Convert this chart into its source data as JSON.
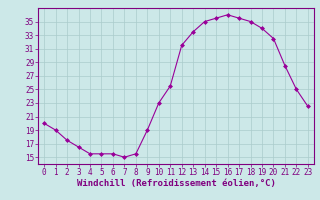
{
  "x": [
    0,
    1,
    2,
    3,
    4,
    5,
    6,
    7,
    8,
    9,
    10,
    11,
    12,
    13,
    14,
    15,
    16,
    17,
    18,
    19,
    20,
    21,
    22,
    23
  ],
  "y": [
    20,
    19,
    17.5,
    16.5,
    15.5,
    15.5,
    15.5,
    15,
    15.5,
    19,
    23,
    25.5,
    31.5,
    33.5,
    35,
    35.5,
    36,
    35.5,
    35,
    34,
    32.5,
    28.5,
    25,
    22.5
  ],
  "line_color": "#990099",
  "marker": "D",
  "marker_size": 2.0,
  "xlim": [
    -0.5,
    23.5
  ],
  "ylim": [
    14,
    37
  ],
  "yticks": [
    15,
    17,
    19,
    21,
    23,
    25,
    27,
    29,
    31,
    33,
    35
  ],
  "xticks": [
    0,
    1,
    2,
    3,
    4,
    5,
    6,
    7,
    8,
    9,
    10,
    11,
    12,
    13,
    14,
    15,
    16,
    17,
    18,
    19,
    20,
    21,
    22,
    23
  ],
  "xlabel": "Windchill (Refroidissement éolien,°C)",
  "background_color": "#cce8e8",
  "grid_color": "#aacccc",
  "label_color": "#800080",
  "tick_color": "#800080",
  "spine_color": "#800080",
  "font_size": 5.5,
  "xlabel_font_size": 6.5
}
